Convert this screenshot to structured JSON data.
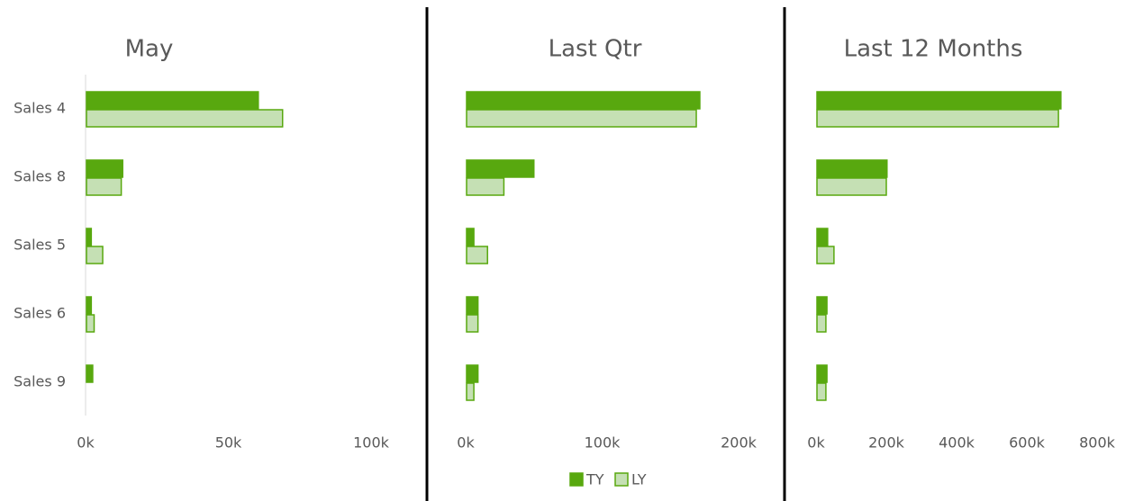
{
  "chart_data": [
    {
      "type": "barh",
      "title": "May",
      "categories": [
        "Sales 4",
        "Sales 8",
        "Sales 5",
        "Sales 6",
        "Sales 9"
      ],
      "series": [
        {
          "color": "#58a80f",
          "values": [
            60500,
            13000,
            2000,
            2000,
            2500
          ]
        },
        {
          "color": "#c5e0b4",
          "values": [
            69000,
            12500,
            6000,
            3000,
            0
          ]
        }
      ],
      "xlim": [
        0,
        100000
      ],
      "xticks": [
        {
          "value": 0,
          "label": "0k"
        },
        {
          "value": 50000,
          "label": "50k"
        },
        {
          "value": 100000,
          "label": "100k"
        }
      ]
    },
    {
      "type": "barh",
      "title": "Last Qtr",
      "series": [
        {
          "name": "TY",
          "color": "#58a80f",
          "values": [
            171600,
            50000,
            6000,
            9000,
            9000
          ]
        },
        {
          "name": "LY",
          "color": "#c5e0b4",
          "values": [
            169000,
            28000,
            16000,
            9000,
            6000
          ]
        }
      ],
      "xlim": [
        0,
        200000
      ],
      "xticks": [
        {
          "value": 0,
          "label": "0k"
        },
        {
          "value": 100000,
          "label": "100k"
        },
        {
          "value": 200000,
          "label": "200k"
        }
      ]
    },
    {
      "type": "barh",
      "title": "Last 12 Months",
      "series": [
        {
          "color": "#58a80f",
          "values": [
            697000,
            202000,
            33000,
            31000,
            31000
          ]
        },
        {
          "color": "#c5e0b4",
          "values": [
            690000,
            200000,
            51000,
            28000,
            28000
          ]
        }
      ],
      "xlim": [
        0,
        800000
      ],
      "xticks": [
        {
          "value": 0,
          "label": "0k"
        },
        {
          "value": 200000,
          "label": "200k"
        },
        {
          "value": 400000,
          "label": "400k"
        },
        {
          "value": 600000,
          "label": "600k"
        },
        {
          "value": 800000,
          "label": "800k"
        }
      ]
    }
  ]
}
